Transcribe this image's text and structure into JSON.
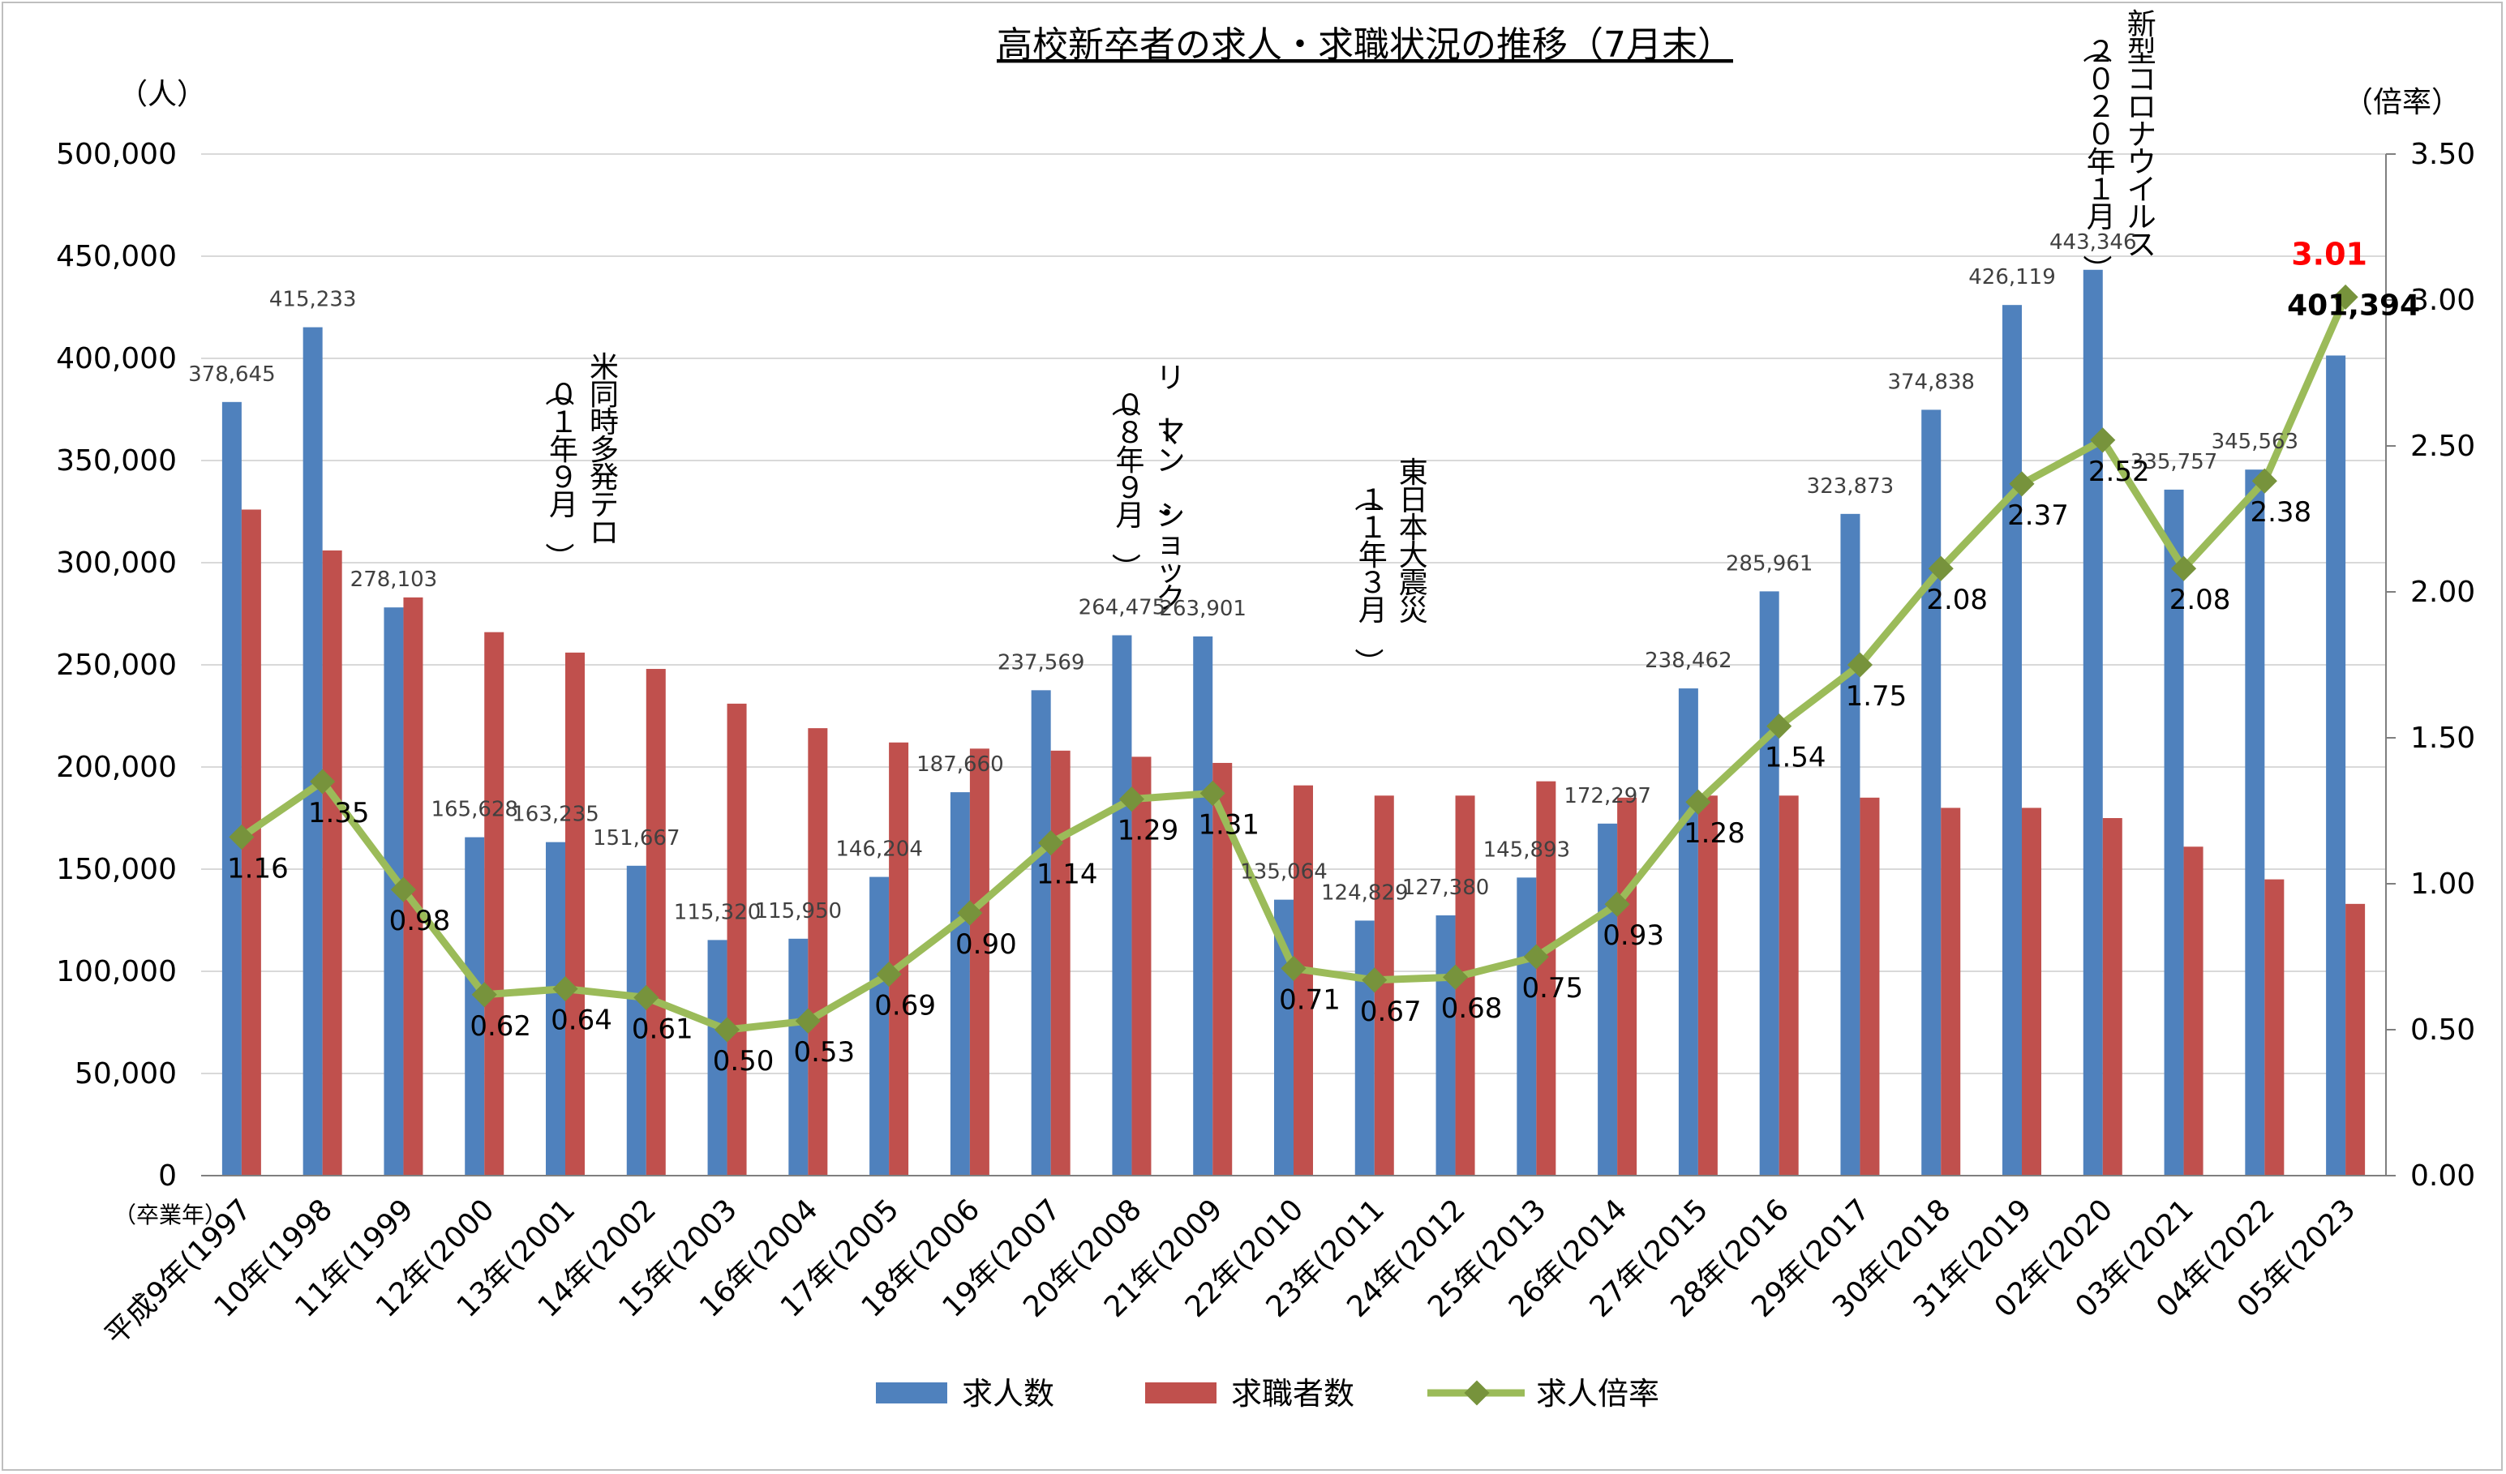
{
  "chart_data": {
    "type": "bar",
    "title": "高校新卒者の求人・求職状況の推移（7月末）",
    "y_left_unit": "（人）",
    "y_right_unit": "（倍率）",
    "x_unit": "（卒業年）",
    "ylim_left": [
      0,
      500000
    ],
    "ylim_right": [
      0,
      3.5
    ],
    "y_left_ticks": [
      "0",
      "50,000",
      "100,000",
      "150,000",
      "200,000",
      "250,000",
      "300,000",
      "350,000",
      "400,000",
      "450,000",
      "500,000"
    ],
    "y_right_ticks": [
      "0.00",
      "0.50",
      "1.00",
      "1.50",
      "2.00",
      "2.50",
      "3.00",
      "3.50"
    ],
    "grid": true,
    "legend_position": "bottom",
    "categories": [
      "平成9年(1997",
      "10年(1998",
      "11年(1999",
      "12年(2000",
      "13年(2001",
      "14年(2002",
      "15年(2003",
      "16年(2004",
      "17年(2005",
      "18年(2006",
      "19年(2007",
      "20年(2008",
      "21年(2009",
      "22年(2010",
      "23年(2011",
      "24年(2012",
      "25年(2013",
      "26年(2014",
      "27年(2015",
      "28年(2016",
      "29年(2017",
      "30年(2018",
      "31年(2019",
      "02年(2020",
      "03年(2021",
      "04年(2022",
      "05年(2023"
    ],
    "series": [
      {
        "name": "求人数",
        "color": "#4f81bd",
        "axis": "left",
        "values": [
          378645,
          415233,
          278103,
          165628,
          163235,
          151667,
          115320,
          115950,
          146204,
          187660,
          237569,
          264475,
          263901,
          135064,
          124829,
          127380,
          145893,
          172297,
          238462,
          285961,
          323873,
          374838,
          426119,
          443346,
          335757,
          345563,
          401394
        ],
        "labels": [
          "378,645",
          "415,233",
          "278,103",
          "165,628",
          "163,235",
          "151,667",
          "115,320",
          "115,950",
          "146,204",
          "187,660",
          "237,569",
          "264,475",
          "263,901",
          "135,064",
          "124,829",
          "127,380",
          "145,893",
          "172,297",
          "238,462",
          "285,961",
          "323,873",
          "374,838",
          "426,119",
          "443,346",
          "335,757",
          "345,563",
          "401,394"
        ]
      },
      {
        "name": "求職者数",
        "color": "#c0504d",
        "axis": "left",
        "values": [
          326000,
          306000,
          283000,
          266000,
          256000,
          248000,
          231000,
          219000,
          212000,
          209000,
          208000,
          205000,
          202000,
          191000,
          186000,
          186000,
          193000,
          185000,
          186000,
          186000,
          185000,
          180000,
          180000,
          175000,
          161000,
          145000,
          133000
        ]
      },
      {
        "name": "求人倍率",
        "color": "#9bbb59",
        "axis": "right",
        "values": [
          1.16,
          1.35,
          0.98,
          0.62,
          0.64,
          0.61,
          0.5,
          0.53,
          0.69,
          0.9,
          1.14,
          1.29,
          1.31,
          0.71,
          0.67,
          0.68,
          0.75,
          0.93,
          1.28,
          1.54,
          1.75,
          2.08,
          2.37,
          2.52,
          2.08,
          2.38,
          3.01
        ],
        "labels": [
          "1.16",
          "1.35",
          "0.98",
          "0.62",
          "0.64",
          "0.61",
          "0.50",
          "0.53",
          "0.69",
          "0.90",
          "1.14",
          "1.29",
          "1.31",
          "0.71",
          "0.67",
          "0.68",
          "0.75",
          "0.93",
          "1.28",
          "1.54",
          "1.75",
          "2.08",
          "2.37",
          "2.52",
          "2.08",
          "2.38",
          "3.01"
        ]
      }
    ],
    "annotations": [
      {
        "text": "米同時多発テロ",
        "sub": "（０１年９月）"
      },
      {
        "text": "リーマン・ショック",
        "sub": "（０８年９月）"
      },
      {
        "text": "東日本大震災",
        "sub": "（１１年３月）"
      },
      {
        "text": "新型コロナウイルス",
        "sub": "（２０２０年１月）"
      }
    ],
    "highlight_color": "#ff0000"
  }
}
